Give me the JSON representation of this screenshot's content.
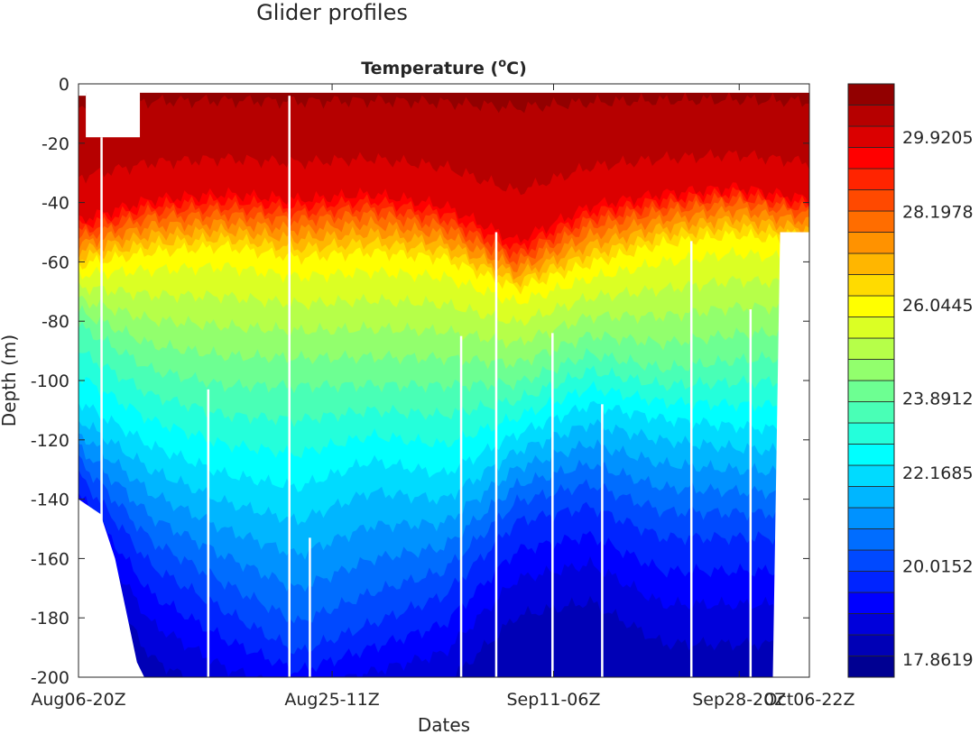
{
  "chart_data": {
    "type": "heatmap",
    "suptitle": "Glider profiles",
    "title": "Temperature  (",
    "title_degree": "o",
    "title_unit": "C)",
    "xlabel": "Dates",
    "ylabel": "Depth  (m)",
    "x_range": [
      0,
      100
    ],
    "ylim": [
      -200,
      0
    ],
    "x_ticks": [
      {
        "pos": 0,
        "label": "Aug06-20Z"
      },
      {
        "pos": 34.7,
        "label": "Aug25-11Z"
      },
      {
        "pos": 65.0,
        "label": "Sep11-06Z"
      },
      {
        "pos": 90.4,
        "label": "Sep28-20Z"
      },
      {
        "pos": 100,
        "label": "Oct06-22Z"
      }
    ],
    "y_ticks": [
      0,
      -20,
      -40,
      -60,
      -80,
      -100,
      -120,
      -140,
      -160,
      -180,
      -200
    ],
    "colorbar": {
      "range": [
        17.445,
        31.15
      ],
      "n_levels": 28,
      "ticks": [
        17.8619,
        20.0152,
        22.1685,
        23.8912,
        26.0445,
        28.1978,
        29.9205
      ]
    },
    "profile_x": [
      0,
      10,
      20,
      30,
      40,
      50,
      60,
      70,
      80,
      90,
      100
    ],
    "surface_temperature": 30.8,
    "isotherms": [
      {
        "temp": 29.9,
        "depth": [
          45,
          38,
          36,
          38,
          36,
          40,
          52,
          40,
          36,
          34,
          38
        ]
      },
      {
        "temp": 28.2,
        "depth": [
          52,
          45,
          44,
          46,
          44,
          48,
          60,
          48,
          43,
          40,
          44
        ]
      },
      {
        "temp": 26.04,
        "depth": [
          62,
          58,
          56,
          60,
          58,
          60,
          70,
          62,
          55,
          52,
          55
        ]
      },
      {
        "temp": 23.89,
        "depth": [
          80,
          95,
          100,
          100,
          100,
          100,
          100,
          90,
          95,
          92,
          90
        ]
      },
      {
        "temp": 22.17,
        "depth": [
          110,
          125,
          135,
          140,
          130,
          135,
          120,
          110,
          115,
          118,
          120
        ]
      },
      {
        "temp": 20.02,
        "depth": [
          130,
          160,
          175,
          190,
          180,
          170,
          145,
          140,
          150,
          150,
          150
        ]
      },
      {
        "temp": 18.5,
        "depth": [
          150,
          190,
          205,
          210,
          205,
          200,
          175,
          170,
          185,
          185,
          185
        ]
      },
      {
        "temp": 17.0,
        "depth": [
          260,
          260,
          260,
          260,
          260,
          260,
          260,
          260,
          260,
          260,
          260
        ]
      }
    ],
    "coverage": {
      "x": [
        0,
        3,
        5,
        8,
        9,
        95,
        96,
        100
      ],
      "max_depth": [
        140,
        145,
        160,
        195,
        200,
        200,
        50,
        50
      ]
    },
    "gaps": [
      {
        "x": 3.0,
        "from": 18,
        "to": 200
      },
      {
        "x": 17.6,
        "from": 103,
        "to": 200
      },
      {
        "x": 28.7,
        "from": 4,
        "to": 200
      },
      {
        "x": 31.5,
        "from": 153,
        "to": 200
      },
      {
        "x": 57.0,
        "from": 50,
        "to": 200
      },
      {
        "x": 52.2,
        "from": 85,
        "to": 200
      },
      {
        "x": 64.7,
        "from": 84,
        "to": 200
      },
      {
        "x": 71.5,
        "from": 108,
        "to": 200
      },
      {
        "x": 83.7,
        "from": 53,
        "to": 200
      },
      {
        "x": 91.8,
        "from": 76,
        "to": 200
      }
    ]
  }
}
